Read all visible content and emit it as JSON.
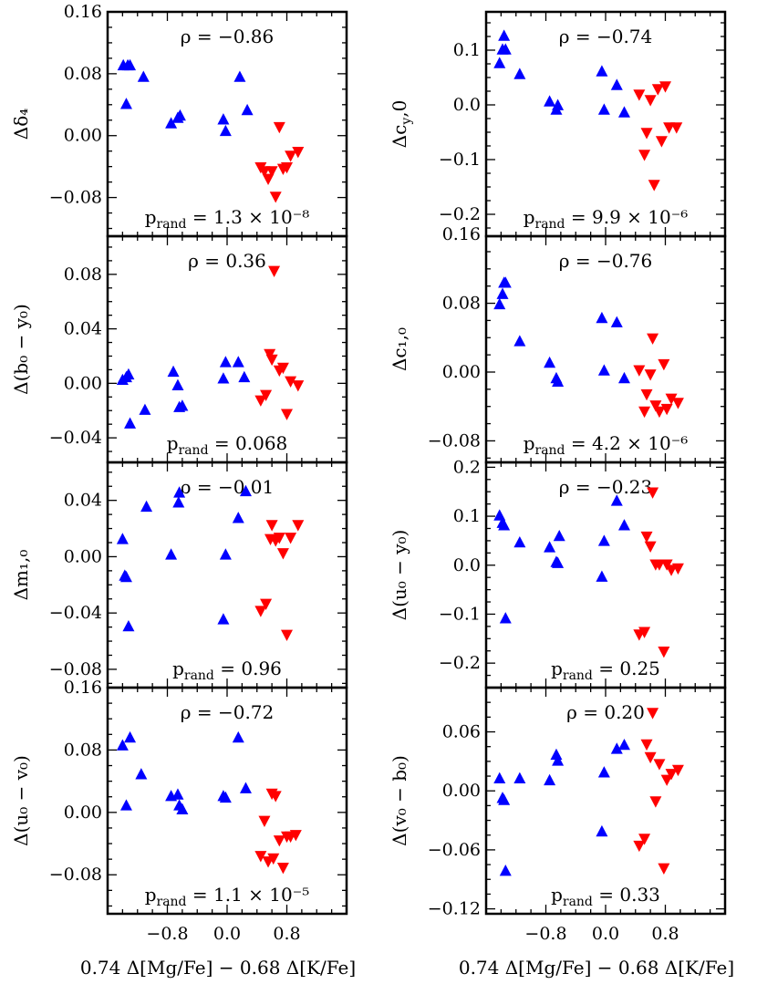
{
  "figure": {
    "xlabel": "0.74 Δ[Mg/Fe] − 0.68 Δ[K/Fe]",
    "xlim": [
      -1.6,
      1.6
    ],
    "xticks": [
      -0.8,
      0.0,
      0.8
    ],
    "xtick_labels": [
      "−0.8",
      "0.0",
      "0.8"
    ],
    "colors": {
      "blue": "#0000ff",
      "red": "#ff0000",
      "axis": "#000000"
    }
  },
  "chart_data": [
    {
      "id": "delta4",
      "type": "scatter",
      "column": 0,
      "row": 0,
      "ylabel": "Δδ₄",
      "ylim": [
        -0.13,
        0.16
      ],
      "yticks": [
        -0.08,
        0.0,
        0.08,
        0.16
      ],
      "ytick_labels": [
        "−0.08",
        "0.00",
        "0.08",
        "0.16"
      ],
      "rho_text": "ρ = −0.86",
      "p_text": "p_rand = 1.3 × 10⁻⁸",
      "series": [
        {
          "name": "blue",
          "marker": "triangle-up",
          "x": [
            -1.39,
            -1.33,
            -1.35,
            -1.3,
            -1.12,
            -0.75,
            -0.66,
            -0.63,
            -0.05,
            -0.02,
            0.17,
            0.27
          ],
          "y": [
            0.09,
            0.09,
            0.04,
            0.09,
            0.075,
            0.015,
            0.022,
            0.025,
            0.02,
            0.005,
            0.075,
            0.032
          ]
        },
        {
          "name": "red",
          "marker": "triangle-down",
          "x": [
            0.45,
            0.5,
            0.55,
            0.6,
            0.65,
            0.7,
            0.75,
            0.8,
            0.85,
            0.95
          ],
          "y": [
            -0.04,
            -0.045,
            -0.055,
            -0.045,
            -0.078,
            0.012,
            -0.042,
            -0.04,
            -0.025,
            -0.02
          ]
        }
      ]
    },
    {
      "id": "b0y0",
      "type": "scatter",
      "column": 0,
      "row": 1,
      "ylabel": "Δ(b₀ − y₀)",
      "ylim": [
        -0.058,
        0.108
      ],
      "yticks": [
        -0.04,
        0.0,
        0.04,
        0.08
      ],
      "ytick_labels": [
        "−0.04",
        "0.00",
        "0.04",
        "0.08"
      ],
      "rho_text": "ρ = 0.36",
      "p_text": "p_rand = 0.068",
      "series": [
        {
          "name": "blue",
          "marker": "triangle-up",
          "x": [
            -1.4,
            -1.35,
            -1.32,
            -1.3,
            -1.1,
            -0.72,
            -0.66,
            -0.64,
            -0.6,
            -0.05,
            -0.02,
            0.15,
            0.23
          ],
          "y": [
            0.002,
            0.004,
            0.006,
            -0.03,
            -0.02,
            0.008,
            -0.002,
            -0.018,
            -0.017,
            0.003,
            0.015,
            0.015,
            0.004
          ]
        },
        {
          "name": "red",
          "marker": "triangle-down",
          "x": [
            0.45,
            0.52,
            0.57,
            0.6,
            0.63,
            0.7,
            0.75,
            0.8,
            0.85,
            0.95
          ],
          "y": [
            -0.012,
            -0.008,
            0.022,
            0.018,
            0.083,
            0.01,
            0.012,
            -0.022,
            0.002,
            -0.001
          ]
        }
      ]
    },
    {
      "id": "m10",
      "type": "scatter",
      "column": 0,
      "row": 2,
      "ylabel": "Δm₁,₀",
      "ylim": [
        -0.093,
        0.067
      ],
      "yticks": [
        -0.08,
        -0.04,
        0.0,
        0.04
      ],
      "ytick_labels": [
        "−0.08",
        "−0.04",
        "0.00",
        "0.04"
      ],
      "rho_text": "ρ = −0.01",
      "p_text": "p_rand = 0.96",
      "series": [
        {
          "name": "blue",
          "marker": "triangle-up",
          "x": [
            -1.4,
            -1.37,
            -1.35,
            -1.32,
            -1.08,
            -0.75,
            -0.65,
            -0.64,
            -0.05,
            -0.02,
            0.15,
            0.25
          ],
          "y": [
            0.012,
            -0.014,
            -0.015,
            -0.05,
            0.035,
            0.001,
            0.038,
            0.045,
            -0.045,
            0.001,
            0.027,
            0.046
          ]
        },
        {
          "name": "red",
          "marker": "triangle-down",
          "x": [
            0.45,
            0.52,
            0.58,
            0.6,
            0.65,
            0.7,
            0.75,
            0.8,
            0.85,
            0.95
          ],
          "y": [
            -0.038,
            -0.033,
            0.013,
            0.023,
            0.012,
            0.014,
            0.003,
            -0.055,
            0.014,
            0.023
          ]
        }
      ]
    },
    {
      "id": "u0v0",
      "type": "scatter",
      "column": 0,
      "row": 3,
      "ylabel": "Δ(u₀ − v₀)",
      "ylim": [
        -0.13,
        0.16
      ],
      "yticks": [
        -0.08,
        0.0,
        0.08,
        0.16
      ],
      "ytick_labels": [
        "−0.08",
        "0.00",
        "0.08",
        "0.16"
      ],
      "rho_text": "ρ = −0.72",
      "p_text": "p_rand = 1.1 × 10⁻⁵",
      "series": [
        {
          "name": "blue",
          "marker": "triangle-up",
          "x": [
            -1.4,
            -1.35,
            -1.3,
            -1.15,
            -0.75,
            -0.66,
            -0.64,
            -0.6,
            -0.05,
            -0.02,
            0.15,
            0.25
          ],
          "y": [
            0.085,
            0.008,
            0.095,
            0.048,
            0.02,
            0.022,
            0.008,
            0.003,
            0.02,
            0.018,
            0.095,
            0.03
          ]
        },
        {
          "name": "red",
          "marker": "triangle-down",
          "x": [
            0.45,
            0.5,
            0.55,
            0.6,
            0.62,
            0.65,
            0.7,
            0.75,
            0.8,
            0.85,
            0.92
          ],
          "y": [
            -0.055,
            -0.01,
            -0.062,
            0.025,
            -0.058,
            0.022,
            -0.035,
            -0.07,
            -0.03,
            -0.03,
            -0.028
          ]
        }
      ]
    },
    {
      "id": "cy0",
      "type": "scatter",
      "column": 1,
      "row": 0,
      "ylabel": "Δc_y,0",
      "ylim": [
        -0.24,
        0.17
      ],
      "yticks": [
        -0.2,
        -0.1,
        0.0,
        0.1
      ],
      "ytick_labels": [
        "−0.2",
        "−0.1",
        "0.0",
        "0.1"
      ],
      "rho_text": "ρ = −0.74",
      "p_text": "p_rand = 9.9 × 10⁻⁶",
      "series": [
        {
          "name": "blue",
          "marker": "triangle-up",
          "x": [
            -1.42,
            -1.38,
            -1.36,
            -1.34,
            -1.15,
            -0.75,
            -0.66,
            -0.64,
            -0.05,
            -0.02,
            0.15,
            0.25
          ],
          "y": [
            0.075,
            0.1,
            0.125,
            0.1,
            0.055,
            0.005,
            -0.01,
            -0.002,
            0.06,
            -0.01,
            0.035,
            -0.015
          ]
        },
        {
          "name": "red",
          "marker": "triangle-down",
          "x": [
            0.45,
            0.52,
            0.55,
            0.6,
            0.65,
            0.7,
            0.75,
            0.8,
            0.85,
            0.95
          ],
          "y": [
            0.02,
            -0.09,
            -0.05,
            0.01,
            -0.145,
            0.03,
            -0.065,
            0.035,
            -0.04,
            -0.04
          ]
        }
      ]
    },
    {
      "id": "c10",
      "type": "scatter",
      "column": 1,
      "row": 1,
      "ylabel": "Δc₁,₀",
      "ylim": [
        -0.105,
        0.158
      ],
      "yticks": [
        -0.08,
        0.0,
        0.08,
        0.16
      ],
      "ytick_labels": [
        "−0.08",
        "0.00",
        "0.08",
        "0.16"
      ],
      "rho_text": "ρ = −0.76",
      "p_text": "p_rand = 4.2 × 10⁻⁶",
      "series": [
        {
          "name": "blue",
          "marker": "triangle-up",
          "x": [
            -1.42,
            -1.38,
            -1.36,
            -1.34,
            -1.15,
            -0.75,
            -0.66,
            -0.64,
            -0.05,
            -0.02,
            0.15,
            0.25
          ],
          "y": [
            0.078,
            0.09,
            0.103,
            0.103,
            0.035,
            0.01,
            -0.008,
            -0.012,
            0.062,
            0.001,
            0.057,
            -0.008
          ]
        },
        {
          "name": "red",
          "marker": "triangle-down",
          "x": [
            0.45,
            0.52,
            0.55,
            0.6,
            0.63,
            0.67,
            0.72,
            0.78,
            0.82,
            0.88,
            0.97
          ],
          "y": [
            0.003,
            -0.045,
            -0.025,
            -0.002,
            0.04,
            -0.038,
            -0.045,
            0.01,
            -0.042,
            -0.03,
            -0.035
          ]
        }
      ]
    },
    {
      "id": "u0y0",
      "type": "scatter",
      "column": 1,
      "row": 2,
      "ylabel": "Δ(u₀ − y₀)",
      "ylim": [
        -0.25,
        0.21
      ],
      "yticks": [
        -0.2,
        -0.1,
        0.0,
        0.1,
        0.2
      ],
      "ytick_labels": [
        "−0.2",
        "−0.1",
        "0.0",
        "0.1",
        "0.2"
      ],
      "rho_text": "ρ = −0.23",
      "p_text": "p_rand = 0.25",
      "series": [
        {
          "name": "blue",
          "marker": "triangle-up",
          "x": [
            -1.42,
            -1.38,
            -1.36,
            -1.34,
            -1.15,
            -0.75,
            -0.66,
            -0.64,
            -0.62,
            -0.05,
            -0.02,
            0.15,
            0.25
          ],
          "y": [
            0.1,
            0.085,
            0.08,
            -0.11,
            0.045,
            0.035,
            0.005,
            0.003,
            0.058,
            -0.025,
            0.048,
            0.13,
            0.08
          ]
        },
        {
          "name": "red",
          "marker": "triangle-down",
          "x": [
            0.45,
            0.52,
            0.55,
            0.6,
            0.63,
            0.67,
            0.72,
            0.78,
            0.82,
            0.88,
            0.97
          ],
          "y": [
            -0.14,
            -0.135,
            0.06,
            0.04,
            0.15,
            0.003,
            0.003,
            -0.175,
            0.003,
            -0.008,
            -0.005
          ]
        }
      ]
    },
    {
      "id": "v0b0",
      "type": "scatter",
      "column": 1,
      "row": 3,
      "ylabel": "Δ(v₀ − b₀)",
      "ylim": [
        -0.125,
        0.105
      ],
      "yticks": [
        -0.12,
        -0.06,
        0.0,
        0.06
      ],
      "ytick_labels": [
        "−0.12",
        "−0.06",
        "0.00",
        "0.06"
      ],
      "rho_text": "ρ = 0.20",
      "p_text": "p_rand = 0.33",
      "series": [
        {
          "name": "blue",
          "marker": "triangle-up",
          "x": [
            -1.42,
            -1.38,
            -1.36,
            -1.34,
            -1.15,
            -0.75,
            -0.66,
            -0.64,
            -0.05,
            -0.02,
            0.15,
            0.25
          ],
          "y": [
            0.012,
            -0.008,
            -0.01,
            -0.082,
            0.012,
            0.01,
            0.036,
            0.03,
            -0.042,
            0.018,
            0.042,
            0.046
          ]
        },
        {
          "name": "red",
          "marker": "triangle-down",
          "x": [
            0.45,
            0.52,
            0.55,
            0.6,
            0.63,
            0.67,
            0.72,
            0.78,
            0.82,
            0.88,
            0.97
          ],
          "y": [
            -0.055,
            -0.048,
            0.048,
            0.035,
            0.08,
            -0.01,
            0.028,
            -0.078,
            0.012,
            0.018,
            0.022
          ]
        }
      ]
    }
  ]
}
